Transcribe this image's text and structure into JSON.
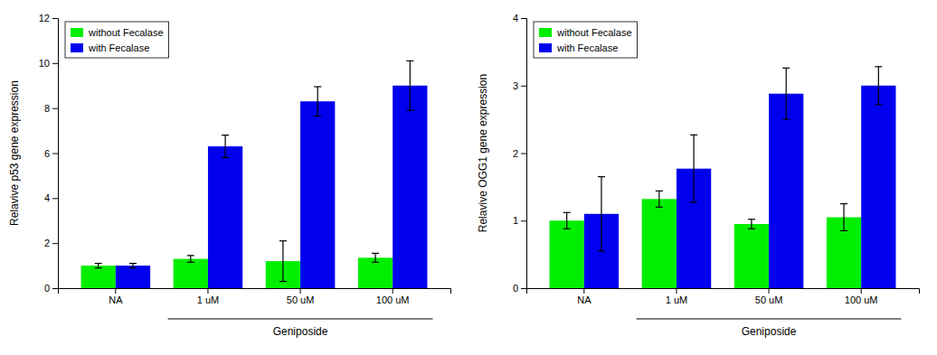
{
  "chart_data": [
    {
      "type": "bar",
      "ylabel": "Relavive p53 gene expression",
      "categories": [
        "NA",
        "1 uM",
        "50 uM",
        "100 uM"
      ],
      "series": [
        {
          "name": "without Fecalase",
          "color": "#00ee00",
          "values": [
            1.0,
            1.3,
            1.2,
            1.35
          ],
          "errors": [
            0.1,
            0.15,
            0.9,
            0.2
          ]
        },
        {
          "name": "with Fecalase",
          "color": "#0000ee",
          "values": [
            1.0,
            6.3,
            8.3,
            9.0
          ],
          "errors": [
            0.1,
            0.5,
            0.65,
            1.1
          ]
        }
      ],
      "ylim": [
        0,
        12
      ],
      "yticks": [
        0,
        2,
        4,
        6,
        8,
        10,
        12
      ],
      "annotations": [
        "Geniposide"
      ],
      "legend": "upper left",
      "grid": false
    },
    {
      "type": "bar",
      "ylabel": "Relavive OGG1 gene expression",
      "categories": [
        "NA",
        "1 uM",
        "50 uM",
        "100 uM"
      ],
      "series": [
        {
          "name": "without Fecalase",
          "color": "#00ee00",
          "values": [
            1.0,
            1.32,
            0.95,
            1.05
          ],
          "errors": [
            0.12,
            0.12,
            0.07,
            0.2
          ]
        },
        {
          "name": "with Fecalase",
          "color": "#0000ee",
          "values": [
            1.1,
            1.77,
            2.88,
            3.0
          ],
          "errors": [
            0.55,
            0.5,
            0.38,
            0.28
          ]
        }
      ],
      "ylim": [
        0,
        4
      ],
      "yticks": [
        0,
        1,
        2,
        3,
        4
      ],
      "annotations": [
        "Geniposide"
      ],
      "legend": "upper left",
      "grid": false
    }
  ]
}
